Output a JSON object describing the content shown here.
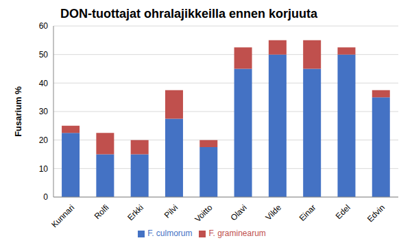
{
  "chart_data": {
    "type": "bar",
    "title": "DON-tuottajat ohralajikkeilla ennen korjuuta",
    "y_label": "Fusarium %",
    "categories": [
      "Kunnari",
      "Rolfi",
      "Erkki",
      "Pilvi",
      "Voitto",
      "Olavi",
      "Vilde",
      "Einar",
      "Edel",
      "Edvin"
    ],
    "series": [
      {
        "name": "F. culmorum",
        "color": "#4472c4",
        "values": [
          22.5,
          15,
          15,
          27.5,
          17.5,
          45,
          50,
          45,
          50,
          35
        ]
      },
      {
        "name": "F. graminearum",
        "color": "#c0504d",
        "values": [
          2.5,
          7.5,
          5,
          10,
          2.5,
          7.5,
          5,
          10,
          2.5,
          2.5
        ]
      }
    ],
    "ylim": [
      0,
      60
    ],
    "yticks": [
      0,
      10,
      20,
      30,
      40,
      50,
      60
    ],
    "grid": true,
    "stacked": true,
    "legend": "bottom"
  }
}
